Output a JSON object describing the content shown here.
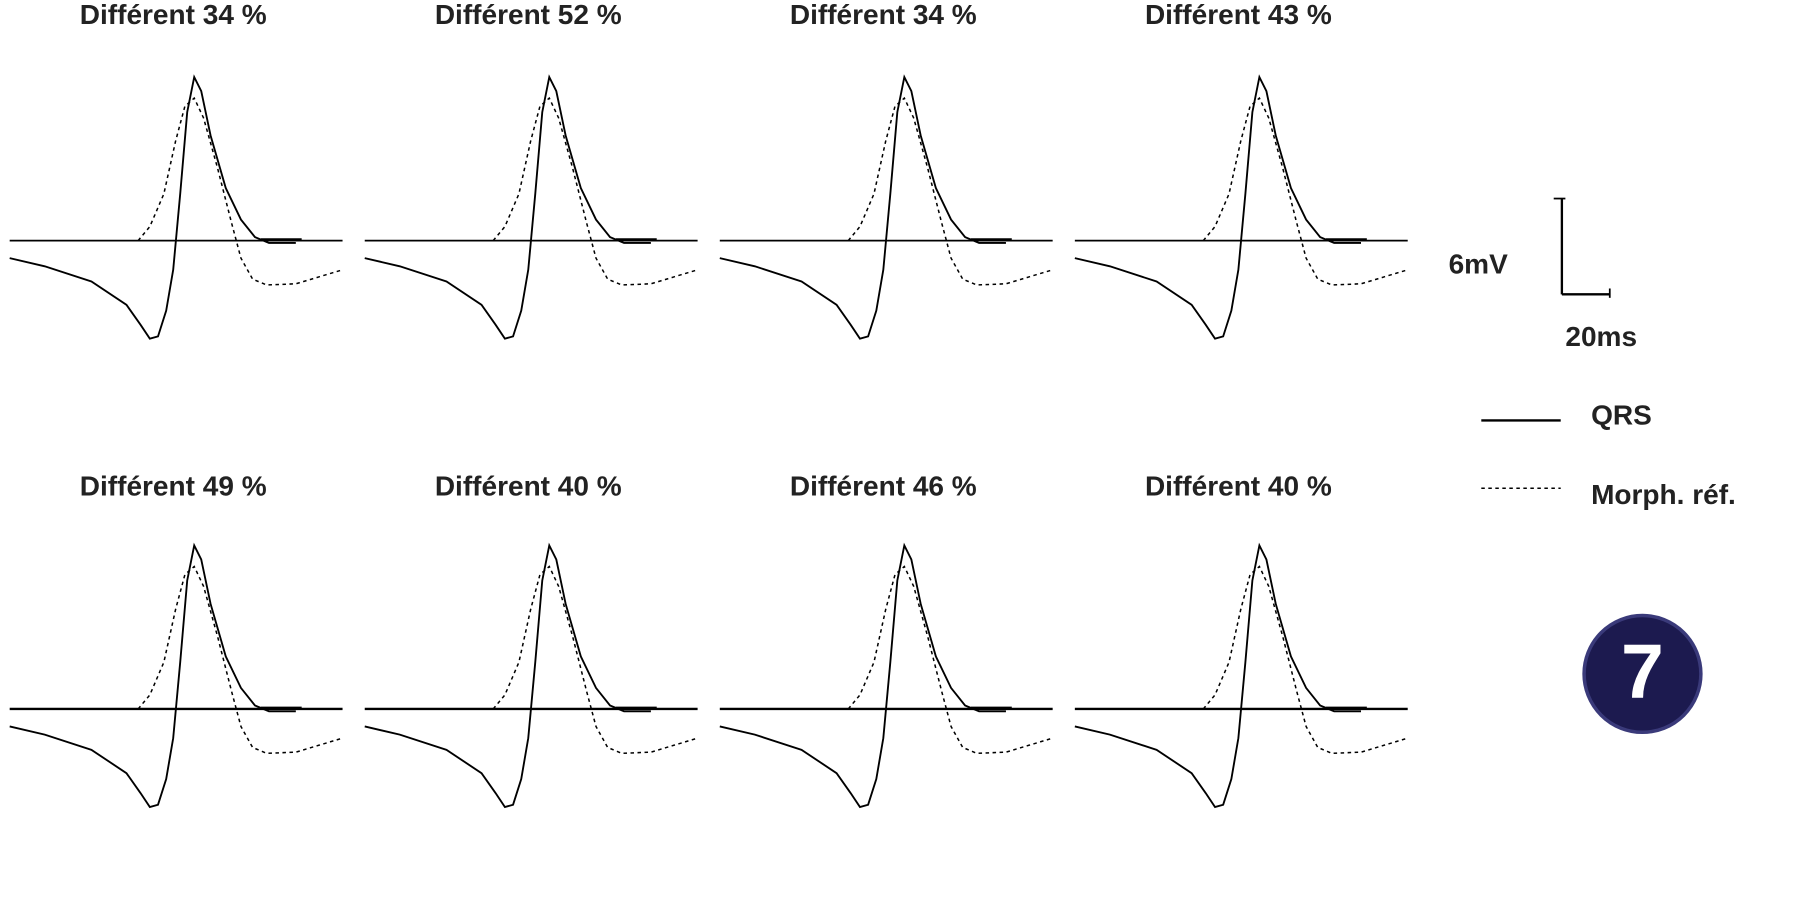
{
  "titles": [
    "Différent 34 %",
    "Différent 52 %",
    "Différent 34 %",
    "Différent 43 %",
    "Différent 49 %",
    "Différent 40 %",
    "Différent 46 %",
    "Différent 40 %"
  ],
  "scale": {
    "voltage": "6mV",
    "time": "20ms"
  },
  "legend": [
    {
      "label": "QRS"
    },
    {
      "label": "Morph. réf."
    }
  ],
  "badge": "7"
}
